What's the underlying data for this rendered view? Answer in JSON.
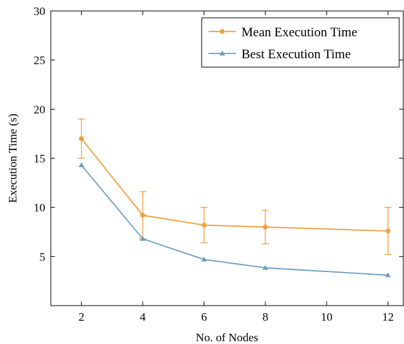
{
  "chart_data": {
    "type": "line",
    "title": "",
    "xlabel": "No. of Nodes",
    "ylabel": "Execution Time (s)",
    "x": [
      2,
      4,
      6,
      8,
      10,
      12
    ],
    "x_ticks": [
      2,
      4,
      6,
      8,
      10,
      12
    ],
    "y_ticks": [
      5,
      10,
      15,
      20,
      25,
      30
    ],
    "xlim": [
      1,
      12.5
    ],
    "ylim": [
      0,
      30
    ],
    "grid": false,
    "legend_position": "top-right",
    "series": [
      {
        "name": "Mean Execution Time",
        "color": "#f0a040",
        "marker": "circle",
        "x": [
          2,
          4,
          6,
          8,
          12
        ],
        "y": [
          17.0,
          9.2,
          8.2,
          8.0,
          7.6
        ],
        "error_low": [
          15.0,
          6.8,
          6.4,
          6.3,
          5.2
        ],
        "error_high": [
          19.0,
          11.6,
          10.0,
          9.7,
          10.0
        ]
      },
      {
        "name": "Best Execution Time",
        "color": "#6f9fbf",
        "marker": "triangle",
        "x": [
          2,
          4,
          6,
          8,
          12
        ],
        "y": [
          14.3,
          6.8,
          4.7,
          3.85,
          3.1
        ]
      }
    ]
  }
}
